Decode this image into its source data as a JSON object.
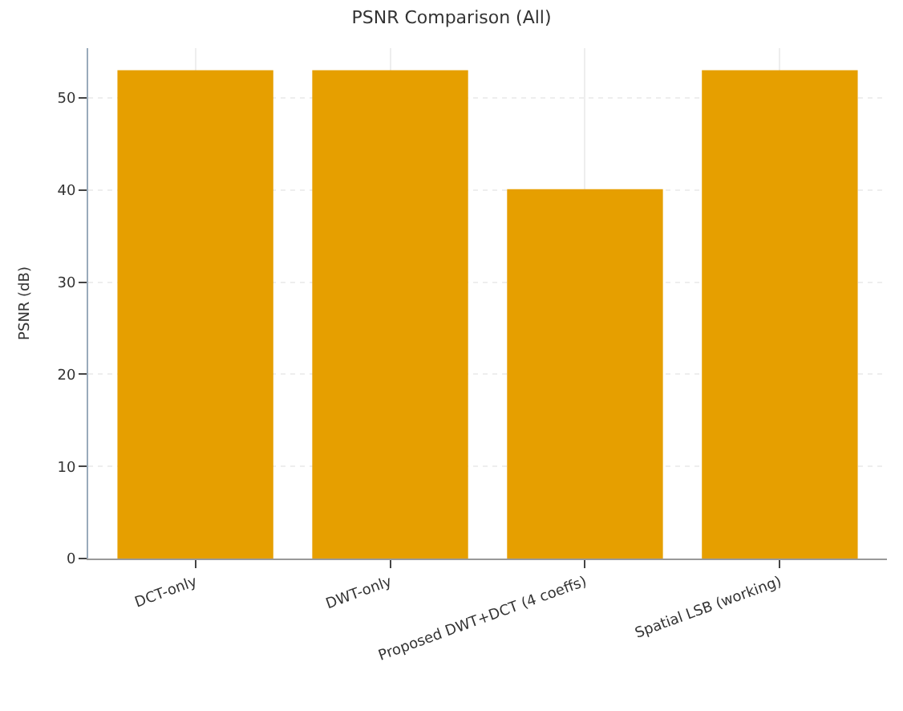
{
  "chart_data": {
    "type": "bar",
    "title": "PSNR Comparison (All)",
    "ylabel": "PSNR (dB)",
    "categories": [
      "DCT-only",
      "DWT-only",
      "Proposed DWT+DCT (4 coeffs)",
      "Spatial LSB (working)"
    ],
    "values": [
      53.0,
      53.0,
      40.1,
      53.0
    ],
    "color": "#e69f00",
    "ylim": [
      0,
      55.4
    ],
    "yticks": [
      0,
      10,
      20,
      30,
      40,
      50
    ],
    "grid": true
  }
}
